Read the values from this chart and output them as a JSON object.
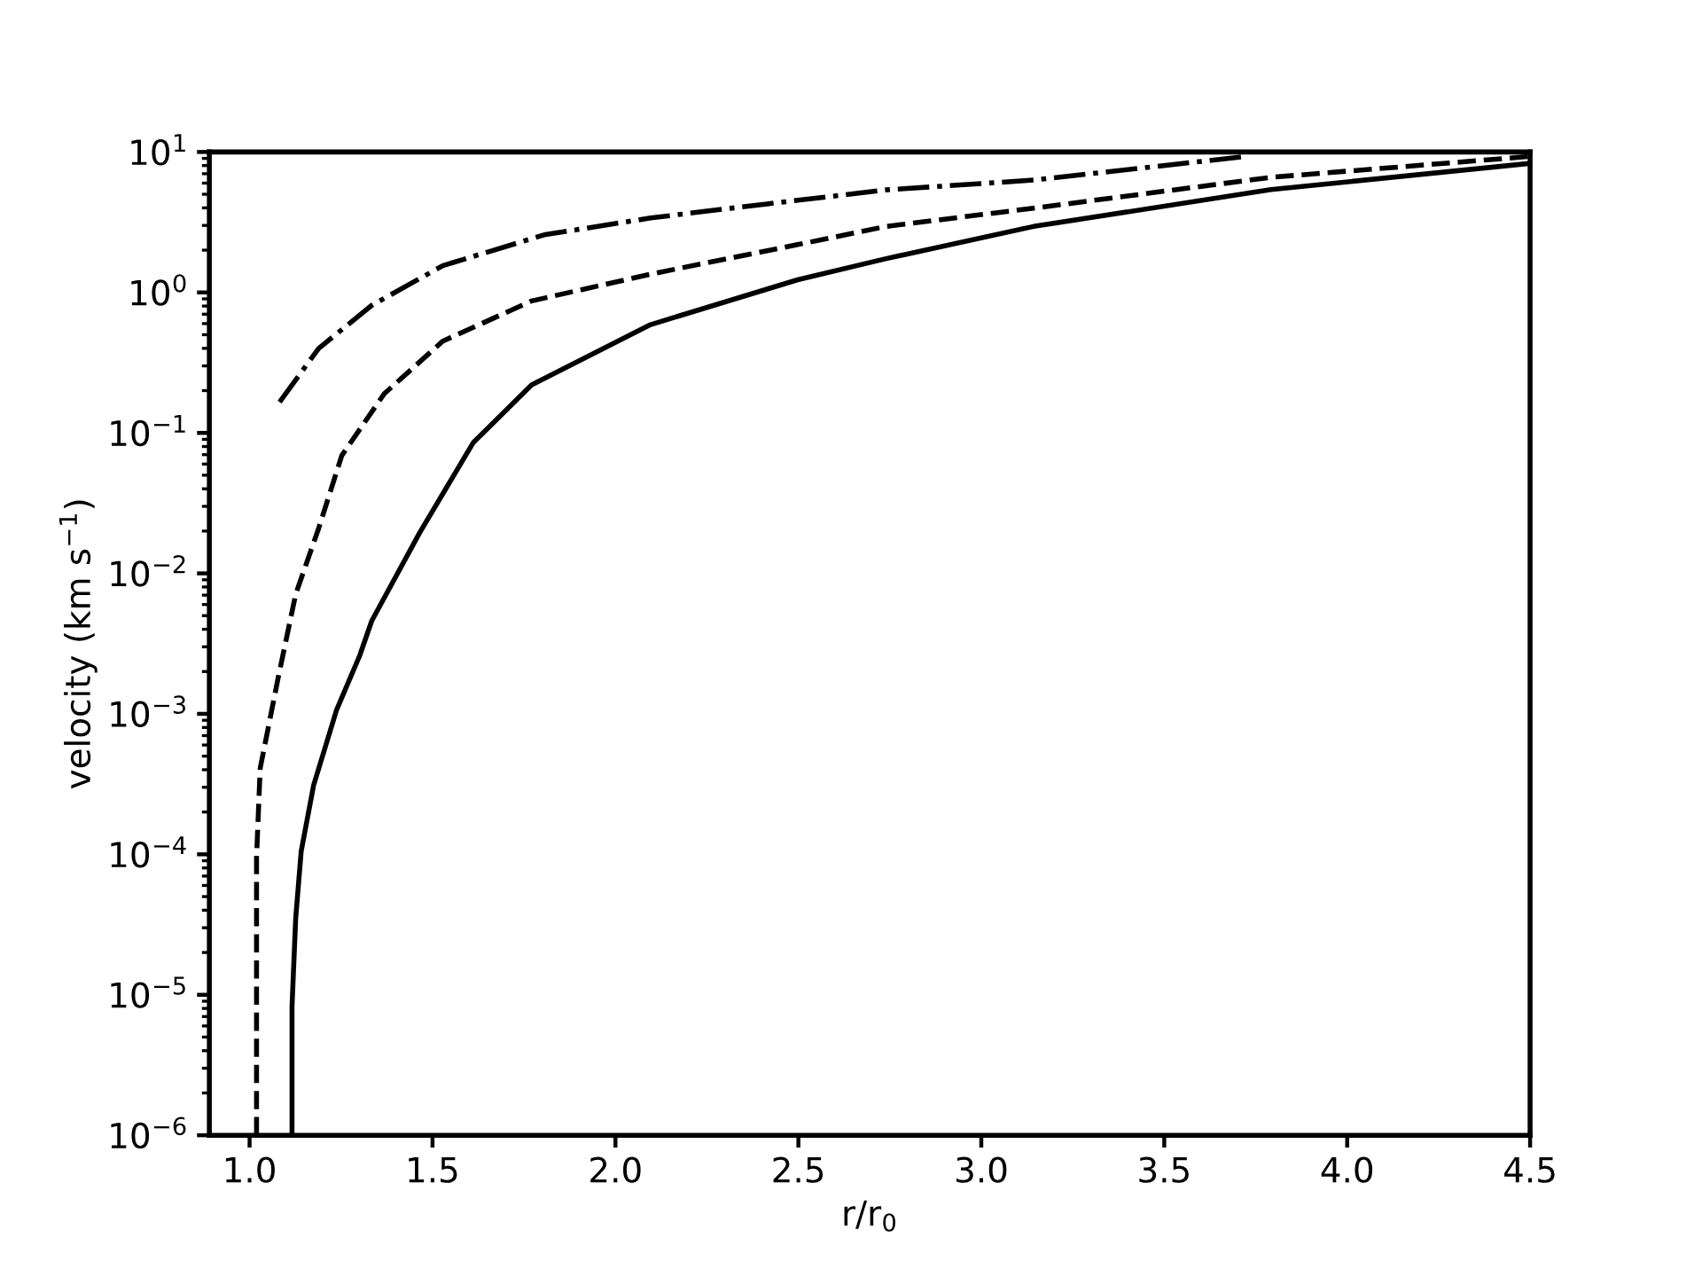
{
  "chart_data": {
    "type": "line",
    "xlabel": "r/r$_{0}$",
    "ylabel": "velocity (km s$^{−1}$)",
    "log": "y",
    "grid": false,
    "legend": false,
    "marker": "none",
    "xlim": [
      0.89,
      4.5
    ],
    "xticks": [
      {
        "value": 1.0,
        "label": "1.0"
      },
      1.5,
      {
        "value": 2.0,
        "label": "2.0"
      },
      2.5,
      {
        "value": 3.0,
        "label": "3.0"
      },
      3.5,
      {
        "value": 4.0,
        "label": "4.0"
      },
      4.5
    ],
    "ylim": [
      1e-06,
      10
    ],
    "yticks": [
      {
        "value": 1e-06,
        "label": "10$^{−6}$"
      },
      {
        "value": 1e-05,
        "label": "10$^{−5}$"
      },
      {
        "value": 0.0001,
        "label": "10$^{−4}$"
      },
      {
        "value": 0.001,
        "label": "10$^{−3}$"
      },
      {
        "value": 0.01,
        "label": "10$^{−2}$"
      },
      {
        "value": 0.1,
        "label": "10$^{−1}$"
      },
      {
        "value": 1,
        "label": "10$^{0}$"
      },
      {
        "value": 10,
        "label": "10$^{1}$"
      }
    ],
    "series": [
      {
        "color": "#000000",
        "line_style": "solid",
        "x": [
          1.116,
          1.116,
          1.126,
          1.141,
          1.175,
          1.238,
          1.301,
          1.334,
          1.465,
          1.611,
          1.771,
          2.096,
          2.498,
          2.74,
          3.143,
          3.792,
          4.5
        ],
        "values": [
          1e-06,
          8.3e-06,
          3.5e-05,
          0.000105,
          0.00031,
          0.00107,
          0.0026,
          0.0046,
          0.0195,
          0.085,
          0.22,
          0.59,
          1.23,
          1.74,
          2.95,
          5.4,
          8.3
        ]
      },
      {
        "color": "#000000",
        "line_style": "dashed",
        "x": [
          1.019,
          1.019,
          1.029,
          1.078,
          1.126,
          1.189,
          1.252,
          1.368,
          1.528,
          1.771,
          2.096,
          2.498,
          2.74,
          3.143,
          3.792,
          4.5
        ],
        "values": [
          1e-06,
          9.5e-05,
          0.00041,
          0.0018,
          0.0071,
          0.021,
          0.069,
          0.19,
          0.45,
          0.87,
          1.35,
          2.19,
          2.95,
          3.98,
          6.6,
          9.3
        ]
      },
      {
        "color": "#000000",
        "line_style": "dashdot",
        "x": [
          1.082,
          1.189,
          1.334,
          1.528,
          1.805,
          2.096,
          2.415,
          2.74,
          3.143,
          3.724
        ],
        "values": [
          0.166,
          0.4,
          0.81,
          1.55,
          2.57,
          3.39,
          4.27,
          5.37,
          6.31,
          9.3
        ]
      }
    ]
  }
}
